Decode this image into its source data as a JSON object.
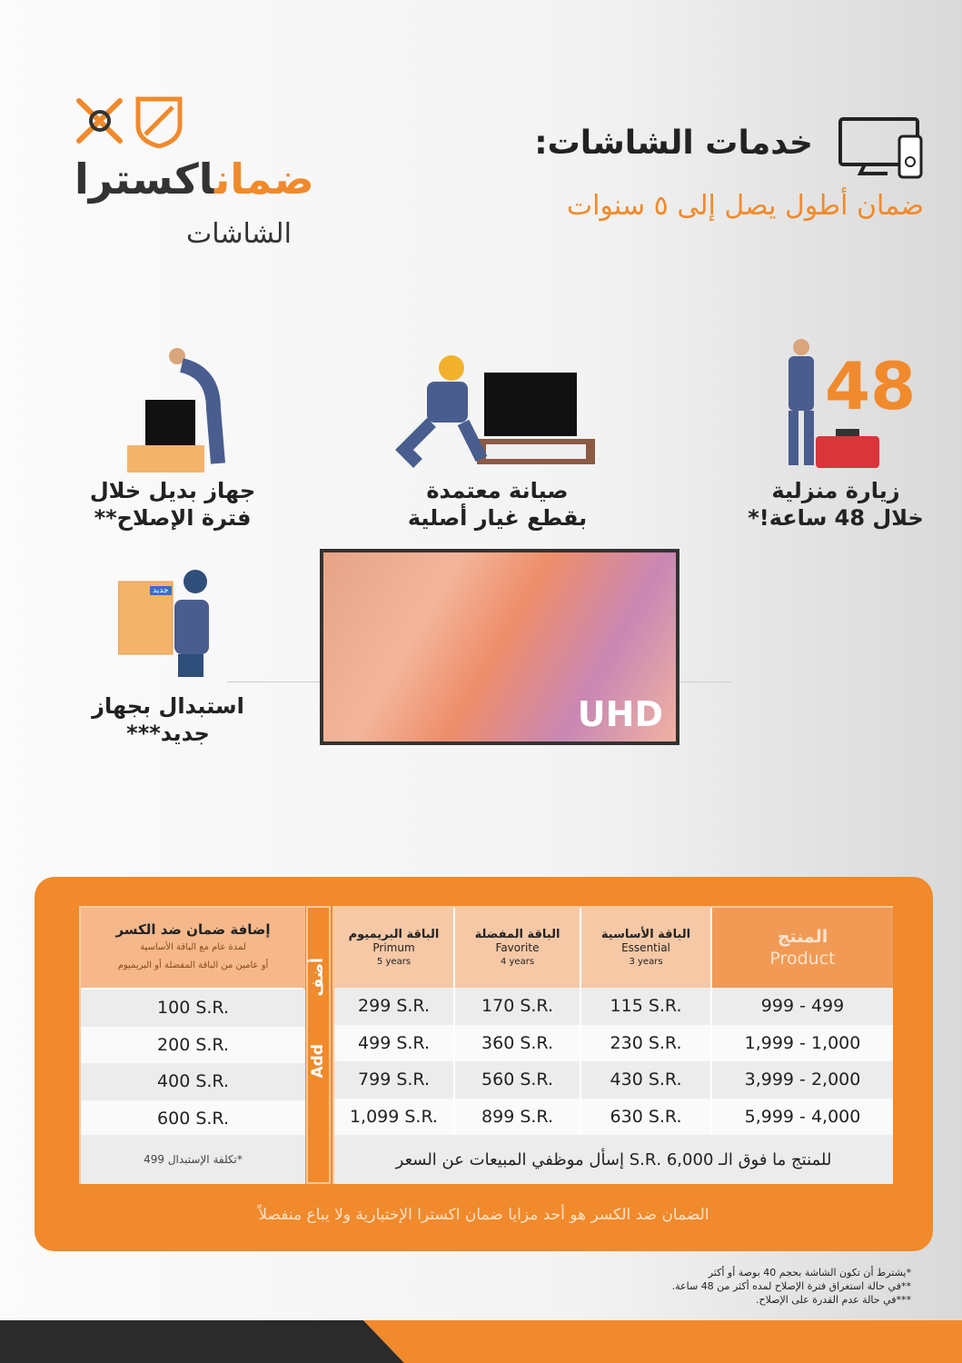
{
  "logo": {
    "brand_accent": "ضمان",
    "brand_main": "اكسترا",
    "subtitle": "الشاشات"
  },
  "header": {
    "title": "خدمات الشاشات:",
    "subtitle": "ضمان أطول يصل إلى ٥ سنوات",
    "icon": "tv-remote-icon"
  },
  "services": [
    {
      "label": "زيارة منزلية خلال 48 ساعة!*",
      "badge": "48"
    },
    {
      "label": "صيانة معتمدة بقطع غيار أصلية"
    },
    {
      "label": "جهاز بديل خلال فترة الإصلاح**"
    },
    {
      "label": "استبدال بجهاز جديد***",
      "box_label": "جديد"
    }
  ],
  "tv": {
    "label": "UHD"
  },
  "colors": {
    "accent": "#f08a2c",
    "dark": "#2b2b2b"
  },
  "table": {
    "headers": [
      {
        "ar": "المنتج",
        "en": "Product"
      },
      {
        "ar": "الباقة الأساسية",
        "en": "Essential",
        "years": "3 years"
      },
      {
        "ar": "الباقة المفضلة",
        "en": "Favorite",
        "years": "4 years"
      },
      {
        "ar": "الباقة البريميوم",
        "en": "Primum",
        "years": "5 years"
      }
    ],
    "rows": [
      [
        "999 - 499",
        "115 S.R.",
        "170 S.R.",
        "299 S.R."
      ],
      [
        "1,999 - 1,000",
        "230 S.R.",
        "360 S.R.",
        "499 S.R."
      ],
      [
        "3,999 - 2,000",
        "430 S.R.",
        "560 S.R.",
        "799 S.R."
      ],
      [
        "5,999 - 4,000",
        "630 S.R.",
        "899 S.R.",
        "1,099 S.R."
      ]
    ],
    "note": "للمنتج ما فوق الـ 6,000 .S.R  إسأل موظفي المبيعات عن السعر",
    "add_ar": "أضف",
    "add_en": "Add",
    "addon": {
      "title": "إضافة ضمان ضد الكسر",
      "sub1": "لمدة عام مع الباقة الأساسية",
      "sub2": "أو عامين من الباقة المفضلة أو البريميوم",
      "values": [
        "100 S.R.",
        "200 S.R.",
        "400 S.R.",
        "600 S.R."
      ],
      "note": "*تكلفة الإستبدال 499"
    }
  },
  "panel_footer": "الضمان ضد الكسر هو أحد مزايا ضمان اكسترا الإختيارية ولا يباع منفصلاً",
  "footnotes": [
    "*يشترط أن تكون الشاشة بحجم 40 بوصة أو أكثر",
    "**في حالة استغراق فترة الإصلاح لمده أكثر من 48 ساعة.",
    "***في حالة عدم القدرة على الإصلاح."
  ]
}
